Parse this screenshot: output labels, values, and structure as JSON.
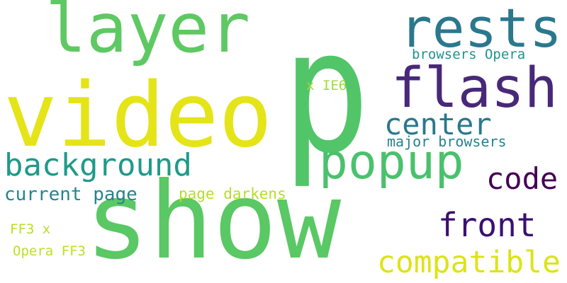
{
  "words": [
    {
      "text": "p",
      "color": "#52c569"
    },
    {
      "text": "show",
      "color": "#5ac864"
    },
    {
      "text": "video",
      "color": "#e4e419"
    },
    {
      "text": "layer",
      "color": "#5ec962"
    },
    {
      "text": "rests",
      "color": "#2a788e"
    },
    {
      "text": "flash",
      "color": "#482878"
    },
    {
      "text": "popup",
      "color": "#4ac16d"
    },
    {
      "text": "background",
      "color": "#1f9a8a"
    },
    {
      "text": "center",
      "color": "#2a788e"
    },
    {
      "text": "code",
      "color": "#440154"
    },
    {
      "text": "front",
      "color": "#3b0f70"
    },
    {
      "text": "compatible",
      "color": "#dde318"
    },
    {
      "text": "current page",
      "color": "#25858e"
    },
    {
      "text": "page darkens",
      "color": "#b5de2b"
    },
    {
      "text": "major browsers",
      "color": "#26828e"
    },
    {
      "text": "browsers Opera",
      "color": "#20928c"
    },
    {
      "text": "x IE6",
      "color": "#a0da39"
    },
    {
      "text": "FF3 x",
      "color": "#b5de2b"
    },
    {
      "text": "Opera FF3",
      "color": "#bddf26"
    }
  ]
}
